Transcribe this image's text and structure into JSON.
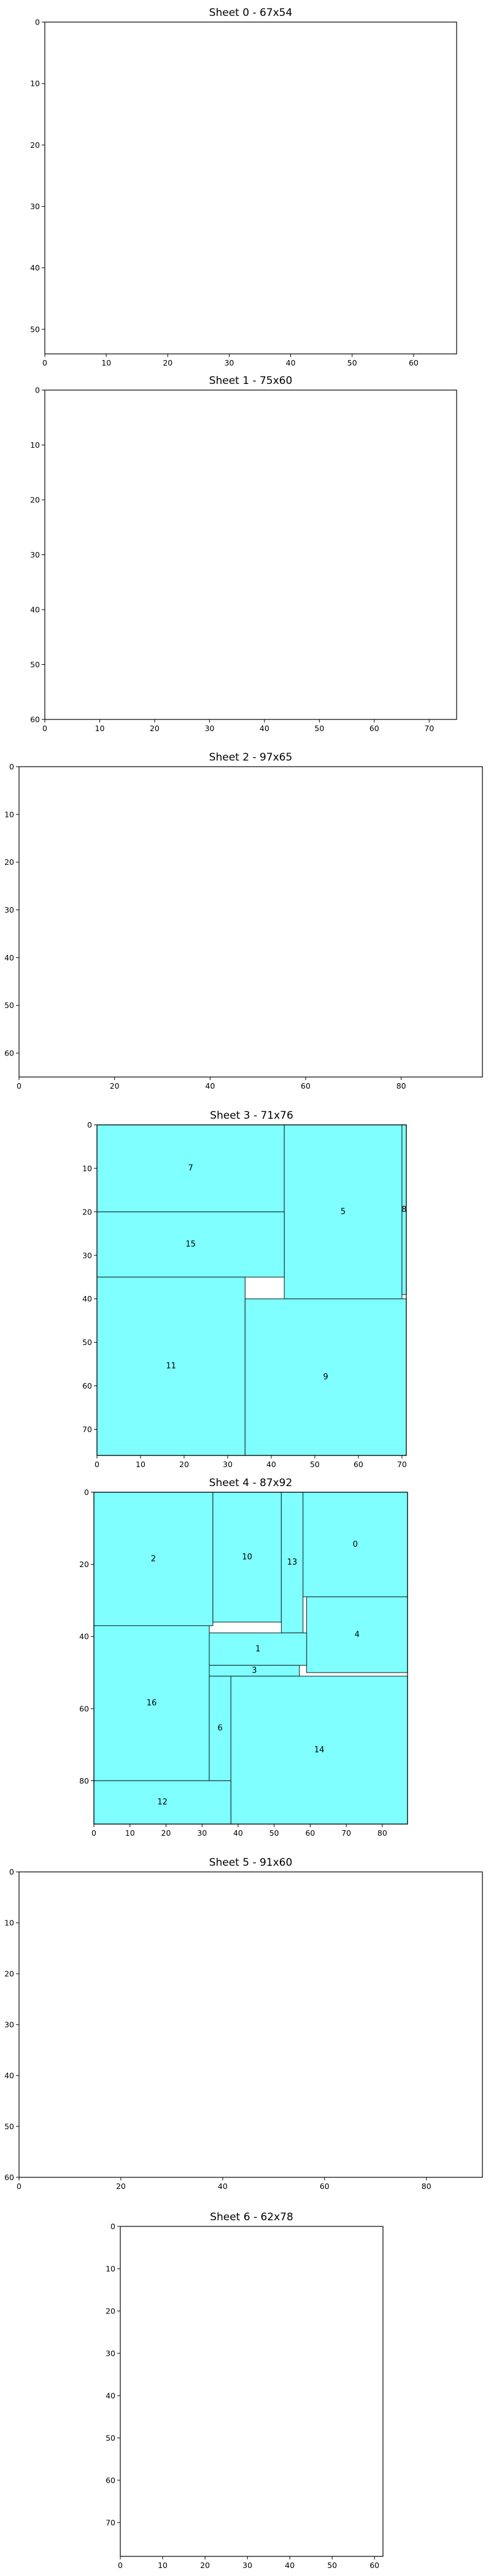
{
  "style": {
    "piece_fill": "#7fffff",
    "piece_stroke": "#1f3f3f",
    "axis_color": "#000000"
  },
  "chart_data": [
    {
      "type": "cutting-layout",
      "title": "Sheet 0 - 67x54",
      "sheet_width": 67,
      "sheet_height": 54,
      "xlim": [
        0,
        67
      ],
      "ylim": [
        0,
        54
      ],
      "y_inverted": true,
      "xticks": [
        0,
        10,
        20,
        30,
        40,
        50,
        60
      ],
      "yticks": [
        0,
        10,
        20,
        30,
        40,
        50
      ],
      "pieces": []
    },
    {
      "type": "cutting-layout",
      "title": "Sheet 1 - 75x60",
      "sheet_width": 75,
      "sheet_height": 60,
      "xlim": [
        0,
        75
      ],
      "ylim": [
        0,
        60
      ],
      "y_inverted": true,
      "xticks": [
        0,
        10,
        20,
        30,
        40,
        50,
        60,
        70
      ],
      "yticks": [
        0,
        10,
        20,
        30,
        40,
        50,
        60
      ],
      "pieces": []
    },
    {
      "type": "cutting-layout",
      "title": "Sheet 2 - 97x65",
      "sheet_width": 97,
      "sheet_height": 65,
      "xlim": [
        0,
        97
      ],
      "ylim": [
        0,
        65
      ],
      "y_inverted": true,
      "xticks": [
        0,
        20,
        40,
        60,
        80
      ],
      "yticks": [
        0,
        10,
        20,
        30,
        40,
        50,
        60
      ],
      "pieces": []
    },
    {
      "type": "cutting-layout",
      "title": "Sheet 3 - 71x76",
      "sheet_width": 71,
      "sheet_height": 76,
      "xlim": [
        0,
        71
      ],
      "ylim": [
        0,
        76
      ],
      "y_inverted": true,
      "xticks": [
        0,
        10,
        20,
        30,
        40,
        50,
        60,
        70
      ],
      "yticks": [
        0,
        10,
        20,
        30,
        40,
        50,
        60,
        70
      ],
      "pieces": [
        {
          "id": "7",
          "x": 0,
          "y": 0,
          "w": 43,
          "h": 20
        },
        {
          "id": "5",
          "x": 43,
          "y": 0,
          "w": 27,
          "h": 40
        },
        {
          "id": "8",
          "x": 70,
          "y": 0,
          "w": 1,
          "h": 39
        },
        {
          "id": "15",
          "x": 0,
          "y": 20,
          "w": 43,
          "h": 15
        },
        {
          "id": "11",
          "x": 0,
          "y": 35,
          "w": 34,
          "h": 41
        },
        {
          "id": "9",
          "x": 34,
          "y": 40,
          "w": 37,
          "h": 36
        }
      ]
    },
    {
      "type": "cutting-layout",
      "title": "Sheet 4 - 87x92",
      "sheet_width": 87,
      "sheet_height": 92,
      "xlim": [
        0,
        87
      ],
      "ylim": [
        0,
        92
      ],
      "y_inverted": true,
      "xticks": [
        0,
        10,
        20,
        30,
        40,
        50,
        60,
        70,
        80
      ],
      "yticks": [
        0,
        20,
        40,
        60,
        80
      ],
      "pieces": [
        {
          "id": "2",
          "x": 0,
          "y": 0,
          "w": 33,
          "h": 37
        },
        {
          "id": "10",
          "x": 33,
          "y": 0,
          "w": 19,
          "h": 36
        },
        {
          "id": "13",
          "x": 52,
          "y": 0,
          "w": 6,
          "h": 39
        },
        {
          "id": "0",
          "x": 58,
          "y": 0,
          "w": 29,
          "h": 29
        },
        {
          "id": "4",
          "x": 59,
          "y": 29,
          "w": 28,
          "h": 21
        },
        {
          "id": "1",
          "x": 32,
          "y": 39,
          "w": 27,
          "h": 9
        },
        {
          "id": "3",
          "x": 32,
          "y": 48,
          "w": 25,
          "h": 3
        },
        {
          "id": "16",
          "x": 0,
          "y": 37,
          "w": 32,
          "h": 43
        },
        {
          "id": "6",
          "x": 32,
          "y": 51,
          "w": 6,
          "h": 29
        },
        {
          "id": "14",
          "x": 38,
          "y": 51,
          "w": 49,
          "h": 41
        },
        {
          "id": "12",
          "x": 0,
          "y": 80,
          "w": 38,
          "h": 12
        }
      ]
    },
    {
      "type": "cutting-layout",
      "title": "Sheet 5 - 91x60",
      "sheet_width": 91,
      "sheet_height": 60,
      "xlim": [
        0,
        91
      ],
      "ylim": [
        0,
        60
      ],
      "y_inverted": true,
      "xticks": [
        0,
        20,
        40,
        60,
        80
      ],
      "yticks": [
        0,
        10,
        20,
        30,
        40,
        50,
        60
      ],
      "pieces": []
    },
    {
      "type": "cutting-layout",
      "title": "Sheet 6 - 62x78",
      "sheet_width": 62,
      "sheet_height": 78,
      "xlim": [
        0,
        62
      ],
      "ylim": [
        0,
        78
      ],
      "y_inverted": true,
      "xticks": [
        0,
        10,
        20,
        30,
        40,
        50,
        60
      ],
      "yticks": [
        0,
        10,
        20,
        30,
        40,
        50,
        60,
        70
      ],
      "pieces": []
    }
  ]
}
